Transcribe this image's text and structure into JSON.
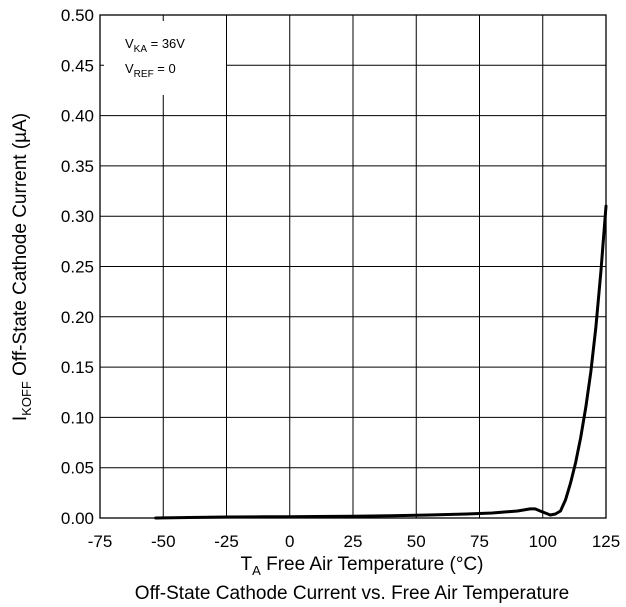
{
  "chart_data": {
    "type": "line",
    "title": "Off-State Cathode Current vs. Free Air Temperature",
    "xlabel": {
      "main": "T",
      "sub": "A",
      "rest": " Free Air Temperature (°C)"
    },
    "ylabel": {
      "main": "I",
      "sub": "KOFF",
      "rest": " Off-State Cathode Current (µA)"
    },
    "xlim": [
      -75,
      125
    ],
    "ylim": [
      0,
      0.5
    ],
    "xticks": [
      "-75",
      "-50",
      "-25",
      "0",
      "25",
      "50",
      "75",
      "100",
      "125"
    ],
    "yticks": [
      "0.00",
      "0.05",
      "0.10",
      "0.15",
      "0.20",
      "0.25",
      "0.30",
      "0.35",
      "0.40",
      "0.45",
      "0.50"
    ],
    "grid": true,
    "annotation": {
      "line1": {
        "main": "V",
        "sub": "KA",
        "rest": " = 36V"
      },
      "line2": {
        "main": "V",
        "sub": "REF",
        "rest": " = 0"
      }
    },
    "series": [
      {
        "x": [
          -53,
          -40,
          -25,
          -10,
          0,
          10,
          25,
          40,
          55,
          70,
          80,
          90,
          95,
          97,
          99,
          101,
          103,
          105,
          107,
          109,
          111,
          113,
          115,
          117,
          119,
          121,
          123,
          125
        ],
        "y": [
          0.0,
          0.0005,
          0.001,
          0.0012,
          0.0013,
          0.0015,
          0.0018,
          0.0022,
          0.003,
          0.004,
          0.005,
          0.007,
          0.009,
          0.009,
          0.007,
          0.005,
          0.003,
          0.004,
          0.007,
          0.018,
          0.035,
          0.055,
          0.08,
          0.11,
          0.145,
          0.19,
          0.245,
          0.31
        ]
      }
    ]
  }
}
